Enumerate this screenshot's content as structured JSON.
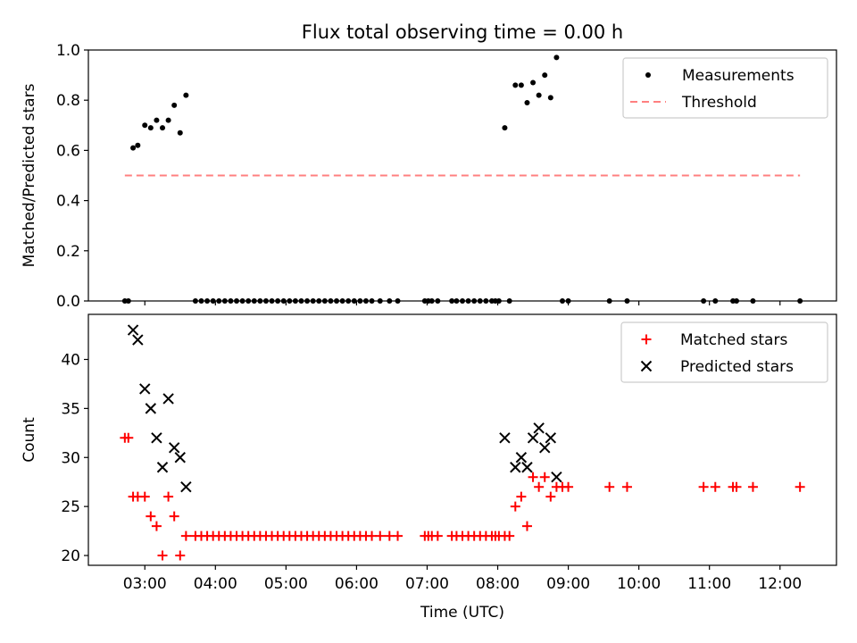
{
  "title": "Flux total observing time = 0.00 h",
  "chart_data": [
    {
      "type": "scatter",
      "ylabel": "Matched/Predicted stars",
      "xlabel": "",
      "ylim": [
        0,
        1.0
      ],
      "yticks": [
        "0.0",
        "0.2",
        "0.4",
        "0.6",
        "0.8",
        "1.0"
      ],
      "xlim": [
        "02:12",
        "12:48"
      ],
      "xticks": [
        "03:00",
        "04:00",
        "05:00",
        "06:00",
        "07:00",
        "08:00",
        "09:00",
        "10:00",
        "11:00",
        "12:00"
      ],
      "legend_position": "top-right",
      "series": [
        {
          "name": "Measurements",
          "marker": "dot",
          "color": "#000000",
          "points": [
            [
              "02:43",
              0.0
            ],
            [
              "02:46",
              0.0
            ],
            [
              "02:50",
              0.61
            ],
            [
              "02:54",
              0.62
            ],
            [
              "03:00",
              0.7
            ],
            [
              "03:05",
              0.69
            ],
            [
              "03:10",
              0.72
            ],
            [
              "03:15",
              0.69
            ],
            [
              "03:20",
              0.72
            ],
            [
              "03:25",
              0.78
            ],
            [
              "03:30",
              0.67
            ],
            [
              "03:35",
              0.82
            ],
            [
              "03:43",
              0.0
            ],
            [
              "03:48",
              0.0
            ],
            [
              "03:53",
              0.0
            ],
            [
              "03:58",
              0.0
            ],
            [
              "04:03",
              0.0
            ],
            [
              "04:08",
              0.0
            ],
            [
              "04:13",
              0.0
            ],
            [
              "04:18",
              0.0
            ],
            [
              "04:23",
              0.0
            ],
            [
              "04:28",
              0.0
            ],
            [
              "04:33",
              0.0
            ],
            [
              "04:38",
              0.0
            ],
            [
              "04:43",
              0.0
            ],
            [
              "04:48",
              0.0
            ],
            [
              "04:53",
              0.0
            ],
            [
              "04:58",
              0.0
            ],
            [
              "05:03",
              0.0
            ],
            [
              "05:08",
              0.0
            ],
            [
              "05:13",
              0.0
            ],
            [
              "05:18",
              0.0
            ],
            [
              "05:23",
              0.0
            ],
            [
              "05:28",
              0.0
            ],
            [
              "05:33",
              0.0
            ],
            [
              "05:38",
              0.0
            ],
            [
              "05:43",
              0.0
            ],
            [
              "05:48",
              0.0
            ],
            [
              "05:53",
              0.0
            ],
            [
              "05:58",
              0.0
            ],
            [
              "06:03",
              0.0
            ],
            [
              "06:08",
              0.0
            ],
            [
              "06:13",
              0.0
            ],
            [
              "06:20",
              0.0
            ],
            [
              "06:28",
              0.0
            ],
            [
              "06:35",
              0.0
            ],
            [
              "06:58",
              0.0
            ],
            [
              "07:01",
              0.0
            ],
            [
              "07:04",
              0.0
            ],
            [
              "07:09",
              0.0
            ],
            [
              "07:21",
              0.0
            ],
            [
              "07:25",
              0.0
            ],
            [
              "07:30",
              0.0
            ],
            [
              "07:35",
              0.0
            ],
            [
              "07:40",
              0.0
            ],
            [
              "07:45",
              0.0
            ],
            [
              "07:50",
              0.0
            ],
            [
              "07:55",
              0.0
            ],
            [
              "07:58",
              0.0
            ],
            [
              "08:01",
              0.0
            ],
            [
              "08:06",
              0.69
            ],
            [
              "08:10",
              0.0
            ],
            [
              "08:15",
              0.86
            ],
            [
              "08:20",
              0.86
            ],
            [
              "08:25",
              0.79
            ],
            [
              "08:30",
              0.87
            ],
            [
              "08:35",
              0.82
            ],
            [
              "08:40",
              0.9
            ],
            [
              "08:45",
              0.81
            ],
            [
              "08:50",
              0.97
            ],
            [
              "08:55",
              0.0
            ],
            [
              "09:00",
              0.0
            ],
            [
              "09:35",
              0.0
            ],
            [
              "09:50",
              0.0
            ],
            [
              "10:55",
              0.0
            ],
            [
              "11:05",
              0.0
            ],
            [
              "11:20",
              0.0
            ],
            [
              "11:23",
              0.0
            ],
            [
              "11:37",
              0.0
            ],
            [
              "12:17",
              0.0
            ]
          ]
        },
        {
          "name": "Threshold",
          "marker": "dashed-line",
          "color": "#ff8080",
          "points": [
            [
              "02:43",
              0.5
            ],
            [
              "12:17",
              0.5
            ]
          ]
        }
      ]
    },
    {
      "type": "scatter",
      "ylabel": "Count",
      "xlabel": "Time (UTC)",
      "ylim": [
        19,
        44.6
      ],
      "yticks": [
        "20",
        "25",
        "30",
        "35",
        "40"
      ],
      "xlim": [
        "02:12",
        "12:48"
      ],
      "xticks": [
        "03:00",
        "04:00",
        "05:00",
        "06:00",
        "07:00",
        "08:00",
        "09:00",
        "10:00",
        "11:00",
        "12:00"
      ],
      "legend_position": "top-right",
      "series": [
        {
          "name": "Matched stars",
          "marker": "plus",
          "color": "#ff0000",
          "points": [
            [
              "02:43",
              32
            ],
            [
              "02:46",
              32
            ],
            [
              "02:50",
              26
            ],
            [
              "02:54",
              26
            ],
            [
              "03:00",
              26
            ],
            [
              "03:05",
              24
            ],
            [
              "03:10",
              23
            ],
            [
              "03:15",
              20
            ],
            [
              "03:20",
              26
            ],
            [
              "03:25",
              24
            ],
            [
              "03:30",
              20
            ],
            [
              "03:35",
              22
            ],
            [
              "03:43",
              22
            ],
            [
              "03:48",
              22
            ],
            [
              "03:53",
              22
            ],
            [
              "03:58",
              22
            ],
            [
              "04:03",
              22
            ],
            [
              "04:08",
              22
            ],
            [
              "04:13",
              22
            ],
            [
              "04:18",
              22
            ],
            [
              "04:23",
              22
            ],
            [
              "04:28",
              22
            ],
            [
              "04:33",
              22
            ],
            [
              "04:38",
              22
            ],
            [
              "04:43",
              22
            ],
            [
              "04:48",
              22
            ],
            [
              "04:53",
              22
            ],
            [
              "04:58",
              22
            ],
            [
              "05:03",
              22
            ],
            [
              "05:08",
              22
            ],
            [
              "05:13",
              22
            ],
            [
              "05:18",
              22
            ],
            [
              "05:23",
              22
            ],
            [
              "05:28",
              22
            ],
            [
              "05:33",
              22
            ],
            [
              "05:38",
              22
            ],
            [
              "05:43",
              22
            ],
            [
              "05:48",
              22
            ],
            [
              "05:53",
              22
            ],
            [
              "05:58",
              22
            ],
            [
              "06:03",
              22
            ],
            [
              "06:08",
              22
            ],
            [
              "06:13",
              22
            ],
            [
              "06:20",
              22
            ],
            [
              "06:28",
              22
            ],
            [
              "06:35",
              22
            ],
            [
              "06:58",
              22
            ],
            [
              "07:01",
              22
            ],
            [
              "07:04",
              22
            ],
            [
              "07:09",
              22
            ],
            [
              "07:21",
              22
            ],
            [
              "07:25",
              22
            ],
            [
              "07:30",
              22
            ],
            [
              "07:35",
              22
            ],
            [
              "07:40",
              22
            ],
            [
              "07:45",
              22
            ],
            [
              "07:50",
              22
            ],
            [
              "07:55",
              22
            ],
            [
              "07:58",
              22
            ],
            [
              "08:01",
              22
            ],
            [
              "08:06",
              22
            ],
            [
              "08:10",
              22
            ],
            [
              "08:15",
              25
            ],
            [
              "08:20",
              26
            ],
            [
              "08:25",
              23
            ],
            [
              "08:30",
              28
            ],
            [
              "08:35",
              27
            ],
            [
              "08:40",
              28
            ],
            [
              "08:45",
              26
            ],
            [
              "08:50",
              27
            ],
            [
              "08:55",
              27
            ],
            [
              "09:00",
              27
            ],
            [
              "09:35",
              27
            ],
            [
              "09:50",
              27
            ],
            [
              "10:55",
              27
            ],
            [
              "11:05",
              27
            ],
            [
              "11:20",
              27
            ],
            [
              "11:23",
              27
            ],
            [
              "11:37",
              27
            ],
            [
              "12:17",
              27
            ]
          ]
        },
        {
          "name": "Predicted stars",
          "marker": "x",
          "color": "#000000",
          "points": [
            [
              "02:50",
              43
            ],
            [
              "02:54",
              42
            ],
            [
              "03:00",
              37
            ],
            [
              "03:05",
              35
            ],
            [
              "03:10",
              32
            ],
            [
              "03:15",
              29
            ],
            [
              "03:20",
              36
            ],
            [
              "03:25",
              31
            ],
            [
              "03:30",
              30
            ],
            [
              "03:35",
              27
            ],
            [
              "08:06",
              32
            ],
            [
              "08:15",
              29
            ],
            [
              "08:20",
              30
            ],
            [
              "08:25",
              29
            ],
            [
              "08:30",
              32
            ],
            [
              "08:35",
              33
            ],
            [
              "08:40",
              31
            ],
            [
              "08:45",
              32
            ],
            [
              "08:50",
              28
            ]
          ]
        }
      ]
    }
  ]
}
